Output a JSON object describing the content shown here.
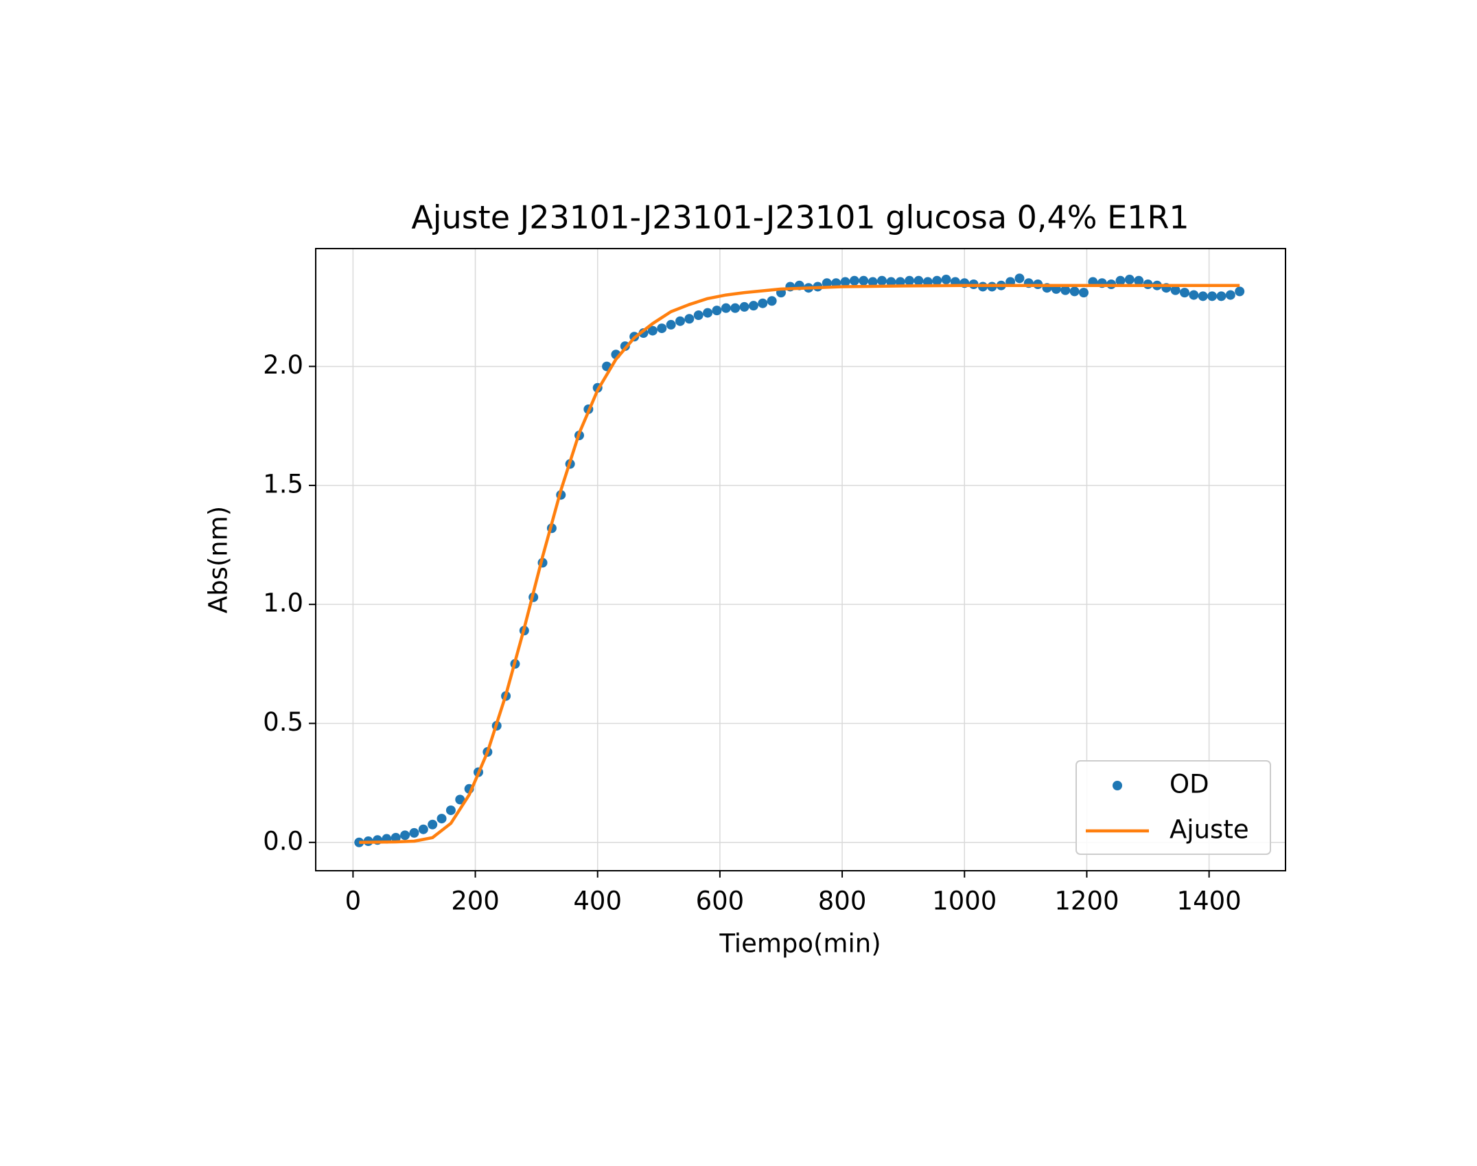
{
  "chart_data": {
    "type": "scatter_line",
    "title": "Ajuste J23101-J23101-J23101 glucosa 0,4% E1R1",
    "x_label": "Tiempo(min)",
    "y_label": "Abs(nm)",
    "x": [
      10,
      25,
      40,
      55,
      70,
      85,
      100,
      115,
      130,
      145,
      160,
      175,
      190,
      205,
      220,
      235,
      250,
      265,
      280,
      295,
      310,
      325,
      340,
      355,
      370,
      385,
      400,
      415,
      430,
      445,
      460,
      475,
      490,
      505,
      520,
      535,
      550,
      565,
      580,
      595,
      610,
      625,
      640,
      655,
      670,
      685,
      700,
      715,
      730,
      745,
      760,
      775,
      790,
      805,
      820,
      835,
      850,
      865,
      880,
      895,
      910,
      925,
      940,
      955,
      970,
      985,
      1000,
      1015,
      1030,
      1045,
      1060,
      1075,
      1090,
      1105,
      1120,
      1135,
      1150,
      1165,
      1180,
      1195,
      1210,
      1225,
      1240,
      1255,
      1270,
      1285,
      1300,
      1315,
      1330,
      1345,
      1360,
      1375,
      1390,
      1405,
      1420,
      1435,
      1450
    ],
    "series": [
      {
        "name": "OD",
        "color": "#1f77b4",
        "style": "points",
        "values": [
          0.0,
          0.005,
          0.01,
          0.015,
          0.02,
          0.03,
          0.04,
          0.055,
          0.075,
          0.1,
          0.135,
          0.18,
          0.225,
          0.295,
          0.38,
          0.49,
          0.615,
          0.75,
          0.89,
          1.03,
          1.175,
          1.32,
          1.46,
          1.59,
          1.71,
          1.82,
          1.91,
          2.0,
          2.05,
          2.085,
          2.125,
          2.14,
          2.15,
          2.16,
          2.175,
          2.19,
          2.2,
          2.215,
          2.225,
          2.235,
          2.245,
          2.245,
          2.25,
          2.255,
          2.265,
          2.275,
          2.31,
          2.335,
          2.34,
          2.33,
          2.335,
          2.35,
          2.35,
          2.355,
          2.36,
          2.36,
          2.355,
          2.36,
          2.355,
          2.355,
          2.36,
          2.36,
          2.355,
          2.36,
          2.365,
          2.355,
          2.35,
          2.345,
          2.335,
          2.335,
          2.34,
          2.355,
          2.37,
          2.35,
          2.345,
          2.33,
          2.325,
          2.32,
          2.315,
          2.31,
          2.355,
          2.35,
          2.345,
          2.36,
          2.365,
          2.36,
          2.345,
          2.34,
          2.33,
          2.32,
          2.31,
          2.3,
          2.295,
          2.295,
          2.295,
          2.3,
          2.315
        ]
      },
      {
        "name": "Ajuste",
        "color": "#ff7f0e",
        "style": "line",
        "x": [
          10,
          40,
          70,
          100,
          130,
          160,
          190,
          220,
          250,
          280,
          310,
          340,
          370,
          400,
          430,
          460,
          490,
          520,
          550,
          580,
          610,
          640,
          700,
          800,
          900,
          1000,
          1200,
          1450
        ],
        "values": [
          0,
          0.001,
          0.002,
          0.005,
          0.02,
          0.08,
          0.2,
          0.38,
          0.62,
          0.9,
          1.2,
          1.48,
          1.72,
          1.9,
          2.03,
          2.12,
          2.18,
          2.23,
          2.26,
          2.285,
          2.3,
          2.31,
          2.325,
          2.335,
          2.338,
          2.34,
          2.34,
          2.34
        ]
      }
    ],
    "xlim": [
      -61,
      1525
    ],
    "ylim": [
      -0.119,
      2.495
    ],
    "xticks": [
      0,
      200,
      400,
      600,
      800,
      1000,
      1200,
      1400
    ],
    "yticks": [
      {
        "value": 0,
        "label": "0.0"
      },
      0.5,
      {
        "value": 1,
        "label": "1.0"
      },
      1.5,
      {
        "value": 2,
        "label": "2.0"
      }
    ],
    "grid": true,
    "legend": "lower right"
  }
}
